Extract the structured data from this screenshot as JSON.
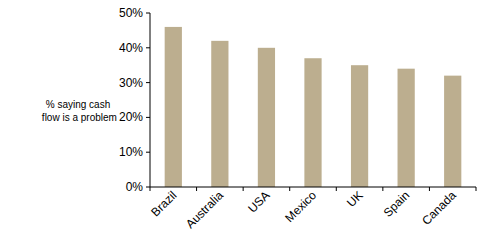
{
  "chart_data": {
    "type": "bar",
    "y_label": "% saying cash flow is a problem",
    "categories": [
      "Brazil",
      "Australia",
      "USA",
      "Mexico",
      "UK",
      "Spain",
      "Canada"
    ],
    "values": [
      46,
      42,
      40,
      37,
      35,
      34,
      32
    ],
    "color": "#bcae8f",
    "ylim": [
      0,
      50
    ],
    "yticks": [
      {
        "value": 0,
        "label": "0%"
      },
      {
        "value": 10,
        "label": "10%"
      },
      {
        "value": 20,
        "label": "20%"
      },
      {
        "value": 30,
        "label": "30%"
      },
      {
        "value": 40,
        "label": "40%"
      },
      {
        "value": 50,
        "label": "50%"
      }
    ],
    "grid": false
  }
}
